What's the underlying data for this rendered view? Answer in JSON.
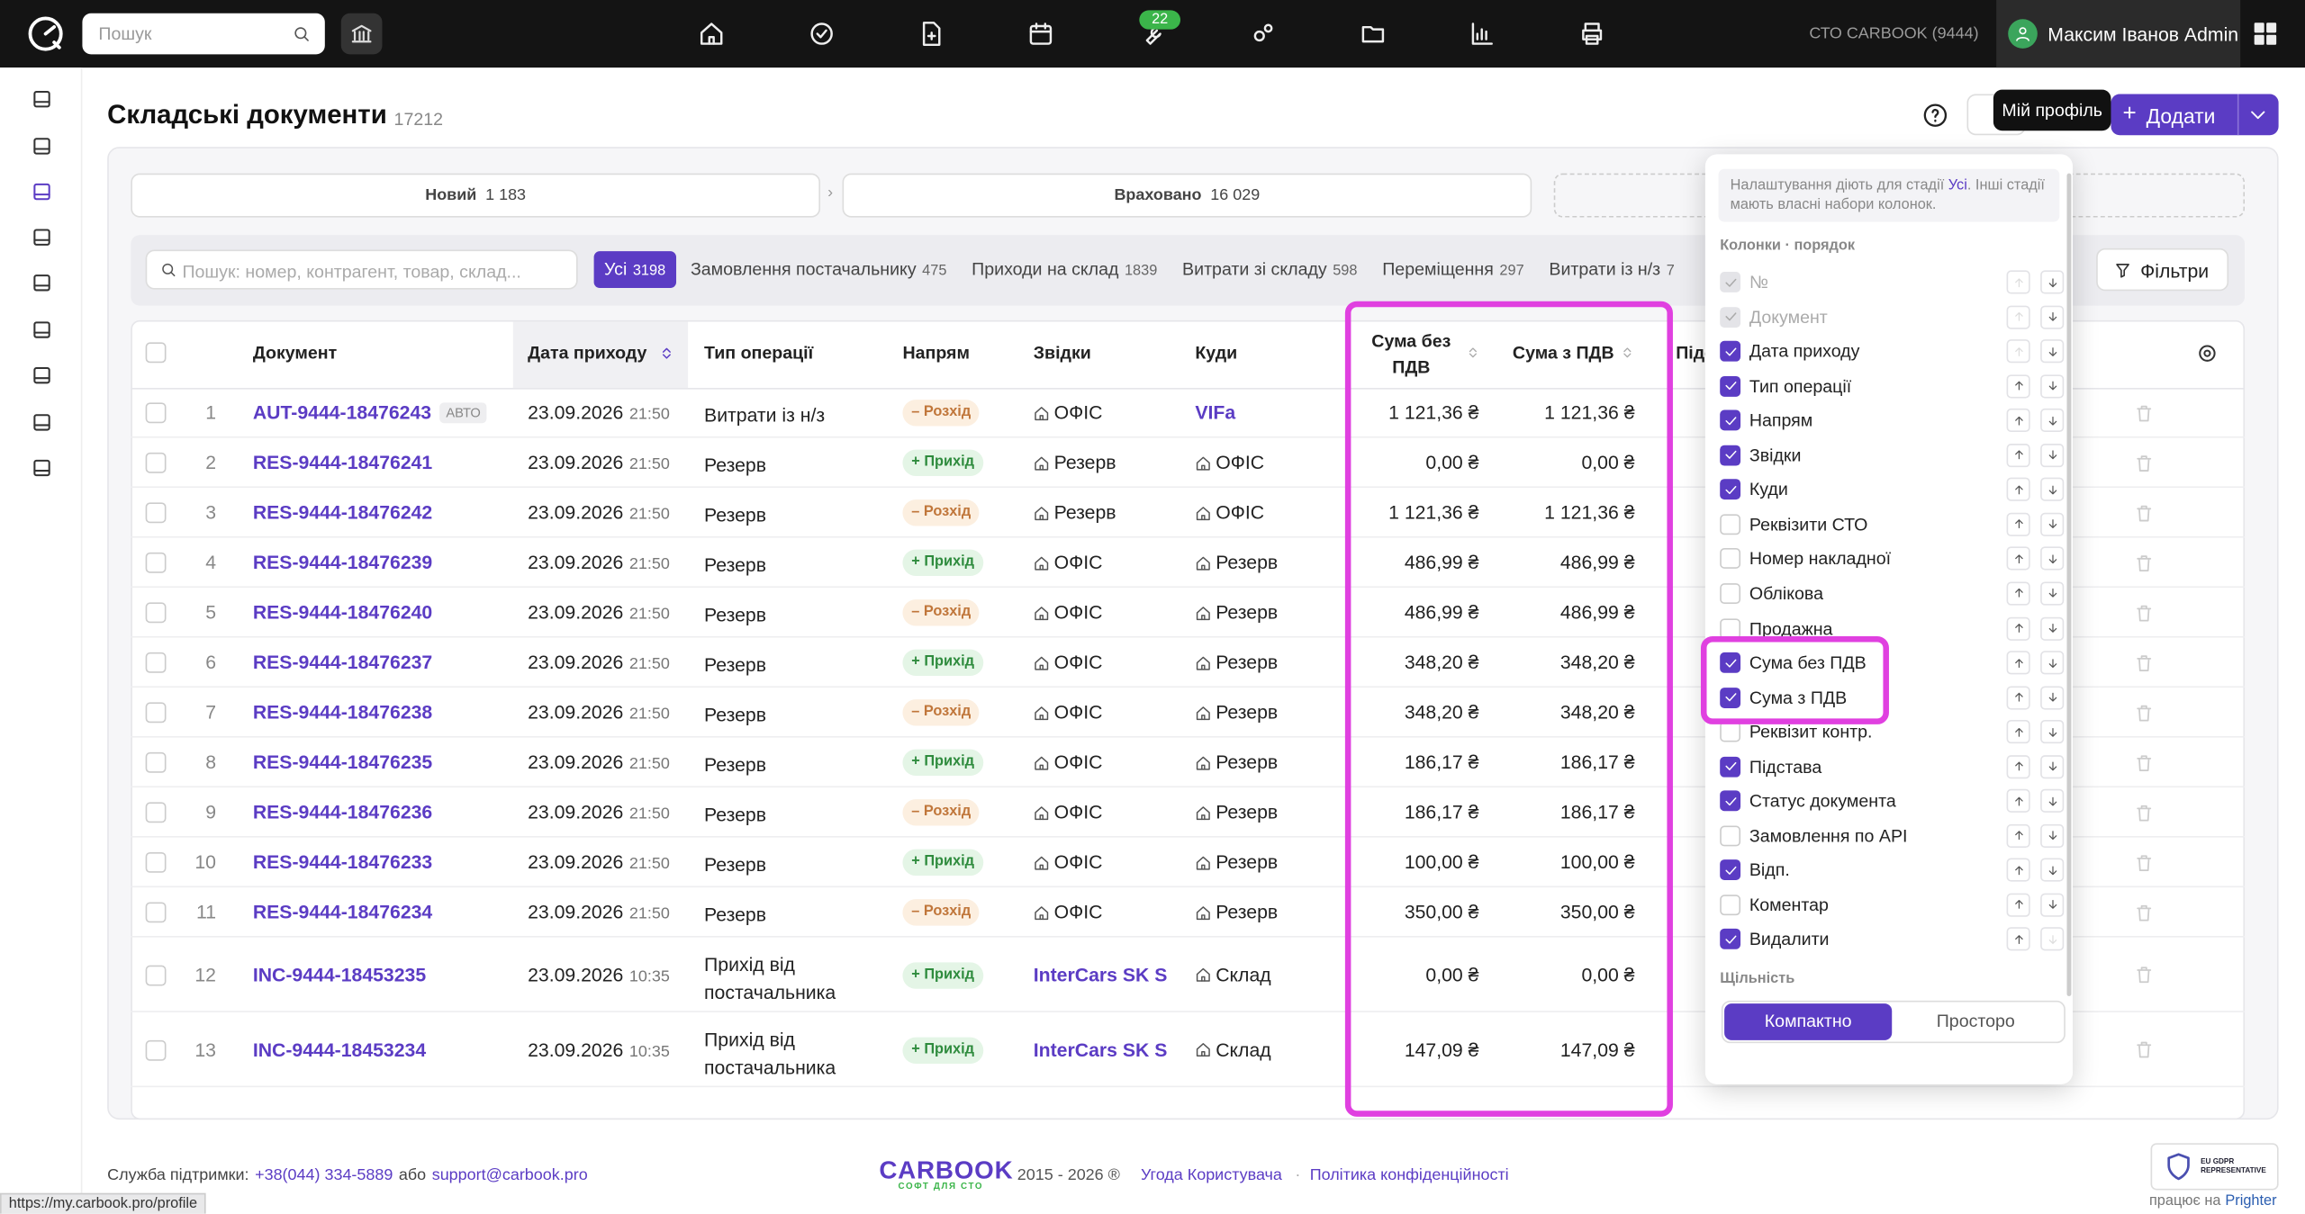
{
  "topbar": {
    "search_placeholder": "Пошук",
    "badge": "22",
    "company": "СТО CARBOOK (9444)",
    "user": "Максим Іванов Admin"
  },
  "header": {
    "title": "Складські документи",
    "count": 17212,
    "tooltip": "Мій профіль",
    "add_button": "Додати"
  },
  "stages": [
    {
      "label": "Новий",
      "count": "1 183"
    },
    {
      "label": "Враховано",
      "count": "16 029"
    }
  ],
  "toolbar": {
    "search_placeholder": "Пошук: номер, контрагент, товар, склад...",
    "filters": "Фільтри",
    "tabs": [
      {
        "label": "Усі",
        "count": "3198",
        "active": true
      },
      {
        "label": "Замовлення постачальнику",
        "count": "475"
      },
      {
        "label": "Приходи на склад",
        "count": "1839"
      },
      {
        "label": "Витрати зі складу",
        "count": "598"
      },
      {
        "label": "Переміщення",
        "count": "297"
      },
      {
        "label": "Витрати із н/з",
        "count": "7"
      }
    ]
  },
  "table": {
    "columns": [
      "Документ",
      "Дата приходу",
      "Тип операції",
      "Напрям",
      "Звідки",
      "Куди",
      "Сума без ПДВ",
      "Сума з ПДВ",
      "Підст"
    ],
    "rows": [
      {
        "num": 1,
        "document": "AUT-9444-18476243",
        "tag": "АВТО",
        "date": "23.09.2026",
        "time": "21:50",
        "operation": "Витрати із н/з",
        "direction": "– Розхід",
        "from": "ОФІС",
        "to": "VIFa",
        "sum_net": "1 121,36 ₴",
        "sum_gross": "1 121,36 ₴"
      },
      {
        "num": 2,
        "document": "RES-9444-18476241",
        "date": "23.09.2026",
        "time": "21:50",
        "operation": "Резерв",
        "direction": "+ Прихід",
        "from": "Резерв",
        "to": "ОФІС",
        "sum_net": "0,00 ₴",
        "sum_gross": "0,00 ₴"
      },
      {
        "num": 3,
        "document": "RES-9444-18476242",
        "date": "23.09.2026",
        "time": "21:50",
        "operation": "Резерв",
        "direction": "– Розхід",
        "from": "Резерв",
        "to": "ОФІС",
        "sum_net": "1 121,36 ₴",
        "sum_gross": "1 121,36 ₴"
      },
      {
        "num": 4,
        "document": "RES-9444-18476239",
        "date": "23.09.2026",
        "time": "21:50",
        "operation": "Резерв",
        "direction": "+ Прихід",
        "from": "ОФІС",
        "to": "Резерв",
        "sum_net": "486,99 ₴",
        "sum_gross": "486,99 ₴"
      },
      {
        "num": 5,
        "document": "RES-9444-18476240",
        "date": "23.09.2026",
        "time": "21:50",
        "operation": "Резерв",
        "direction": "– Розхід",
        "from": "ОФІС",
        "to": "Резерв",
        "sum_net": "486,99 ₴",
        "sum_gross": "486,99 ₴"
      },
      {
        "num": 6,
        "document": "RES-9444-18476237",
        "date": "23.09.2026",
        "time": "21:50",
        "operation": "Резерв",
        "direction": "+ Прихід",
        "from": "ОФІС",
        "to": "Резерв",
        "sum_net": "348,20 ₴",
        "sum_gross": "348,20 ₴"
      },
      {
        "num": 7,
        "document": "RES-9444-18476238",
        "date": "23.09.2026",
        "time": "21:50",
        "operation": "Резерв",
        "direction": "– Розхід",
        "from": "ОФІС",
        "to": "Резерв",
        "sum_net": "348,20 ₴",
        "sum_gross": "348,20 ₴"
      },
      {
        "num": 8,
        "document": "RES-9444-18476235",
        "date": "23.09.2026",
        "time": "21:50",
        "operation": "Резерв",
        "direction": "+ Прихід",
        "from": "ОФІС",
        "to": "Резерв",
        "sum_net": "186,17 ₴",
        "sum_gross": "186,17 ₴"
      },
      {
        "num": 9,
        "document": "RES-9444-18476236",
        "date": "23.09.2026",
        "time": "21:50",
        "operation": "Резерв",
        "direction": "– Розхід",
        "from": "ОФІС",
        "to": "Резерв",
        "sum_net": "186,17 ₴",
        "sum_gross": "186,17 ₴"
      },
      {
        "num": 10,
        "document": "RES-9444-18476233",
        "date": "23.09.2026",
        "time": "21:50",
        "operation": "Резерв",
        "direction": "+ Прихід",
        "from": "ОФІС",
        "to": "Резерв",
        "sum_net": "100,00 ₴",
        "sum_gross": "100,00 ₴"
      },
      {
        "num": 11,
        "document": "RES-9444-18476234",
        "date": "23.09.2026",
        "time": "21:50",
        "operation": "Резерв",
        "direction": "– Розхід",
        "from": "ОФІС",
        "to": "Резерв",
        "sum_net": "350,00 ₴",
        "sum_gross": "350,00 ₴"
      },
      {
        "num": 12,
        "document": "INC-9444-18453235",
        "date": "23.09.2026",
        "time": "10:35",
        "operation": "Прихід від постачальника",
        "direction": "+ Прихід",
        "from": "InterCars SK S",
        "to": "Склад",
        "sum_net": "0,00 ₴",
        "sum_gross": "0,00 ₴"
      },
      {
        "num": 13,
        "document": "INC-9444-18453234",
        "date": "23.09.2026",
        "time": "10:35",
        "operation": "Прихід від постачальника",
        "direction": "+ Прихід",
        "from": "InterCars SK S",
        "to": "Склад",
        "sum_net": "147,09 ₴",
        "sum_gross": "147,09 ₴"
      }
    ]
  },
  "settings": {
    "note_before": "Налаштування діють для стадії",
    "note_link": "Усі",
    "note_after": ". Інші стадії мають власні набори колонок.",
    "columns_title": "Колонки · порядок",
    "items": [
      {
        "label": "№",
        "checked": true,
        "disabled": true
      },
      {
        "label": "Документ",
        "checked": true,
        "disabled": true
      },
      {
        "label": "Дата приходу",
        "checked": true
      },
      {
        "label": "Тип операції",
        "checked": true
      },
      {
        "label": "Напрям",
        "checked": true
      },
      {
        "label": "Звідки",
        "checked": true
      },
      {
        "label": "Куди",
        "checked": true
      },
      {
        "label": "Реквізити СТО",
        "checked": false
      },
      {
        "label": "Номер накладної",
        "checked": false
      },
      {
        "label": "Облікова",
        "checked": false
      },
      {
        "label": "Продажна",
        "checked": false
      },
      {
        "label": "Сума без ПДВ",
        "checked": true
      },
      {
        "label": "Сума з ПДВ",
        "checked": true
      },
      {
        "label": "Реквізит контр.",
        "checked": false
      },
      {
        "label": "Підстава",
        "checked": true
      },
      {
        "label": "Статус документа",
        "checked": true
      },
      {
        "label": "Замовлення по API",
        "checked": false
      },
      {
        "label": "Відп.",
        "checked": true
      },
      {
        "label": "Коментар",
        "checked": false
      },
      {
        "label": "Видалити",
        "checked": true
      }
    ],
    "density_title": "Щільність",
    "density_options": [
      "Компактно",
      "Просторо"
    ]
  },
  "footer": {
    "support": "Служба підтримки:",
    "phone": "+38(044) 334-5889",
    "or": "або",
    "email": "support@carbook.pro",
    "logo": "CARBOOK",
    "slogan": "СОФТ ДЛЯ СТО",
    "years": "2015 - 2026 ®",
    "terms": "Угода Користувача",
    "privacy": "Політика конфіденційності",
    "gdpr": "EU GDPR REPRESENTATIVE",
    "powered": "працює на",
    "powered_by": "Prighter"
  },
  "status_url": "https://my.carbook.pro/profile"
}
